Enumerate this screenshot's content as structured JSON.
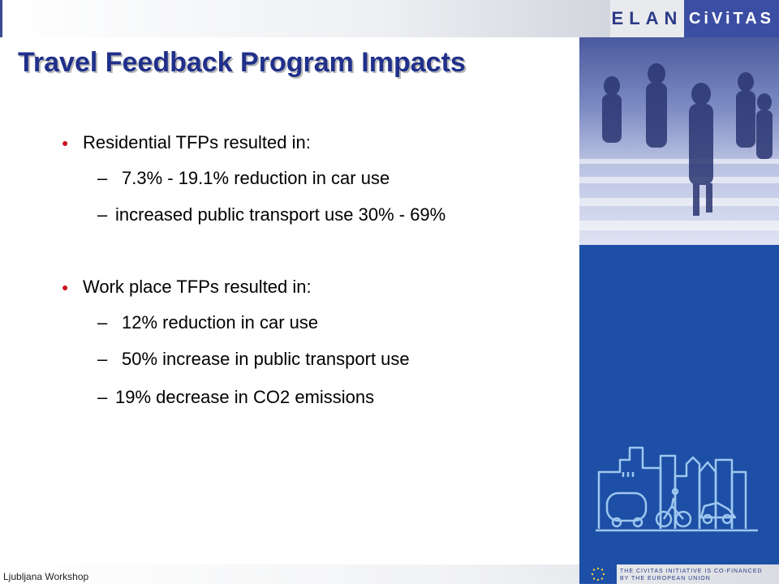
{
  "header": {
    "logo_elan": "ELAN",
    "logo_civitas": "CiViTAS"
  },
  "title": "Travel Feedback Program Impacts",
  "sections": [
    {
      "heading": "Residential TFPs resulted in:",
      "items": [
        "7.3% - 19.1% reduction in car use",
        "increased public transport use 30% - 69%"
      ]
    },
    {
      "heading": "Work place TFPs resulted in:",
      "items": [
        "12% reduction in car use",
        "50% increase in public transport use",
        "19% decrease in CO2 emissions"
      ]
    }
  ],
  "footer": {
    "text": "Ljubljana Workshop",
    "eu_line1": "THE CIVITAS INITIATIVE IS CO-FINANCED",
    "eu_line2": "BY THE EUROPEAN UNION"
  },
  "colors": {
    "title": "#20308a",
    "bullet": "#cc1122",
    "panel": "#1c4fa5"
  },
  "icons": [
    "people-crossing-photo",
    "city-line-illustration",
    "eu-flag-icon"
  ]
}
